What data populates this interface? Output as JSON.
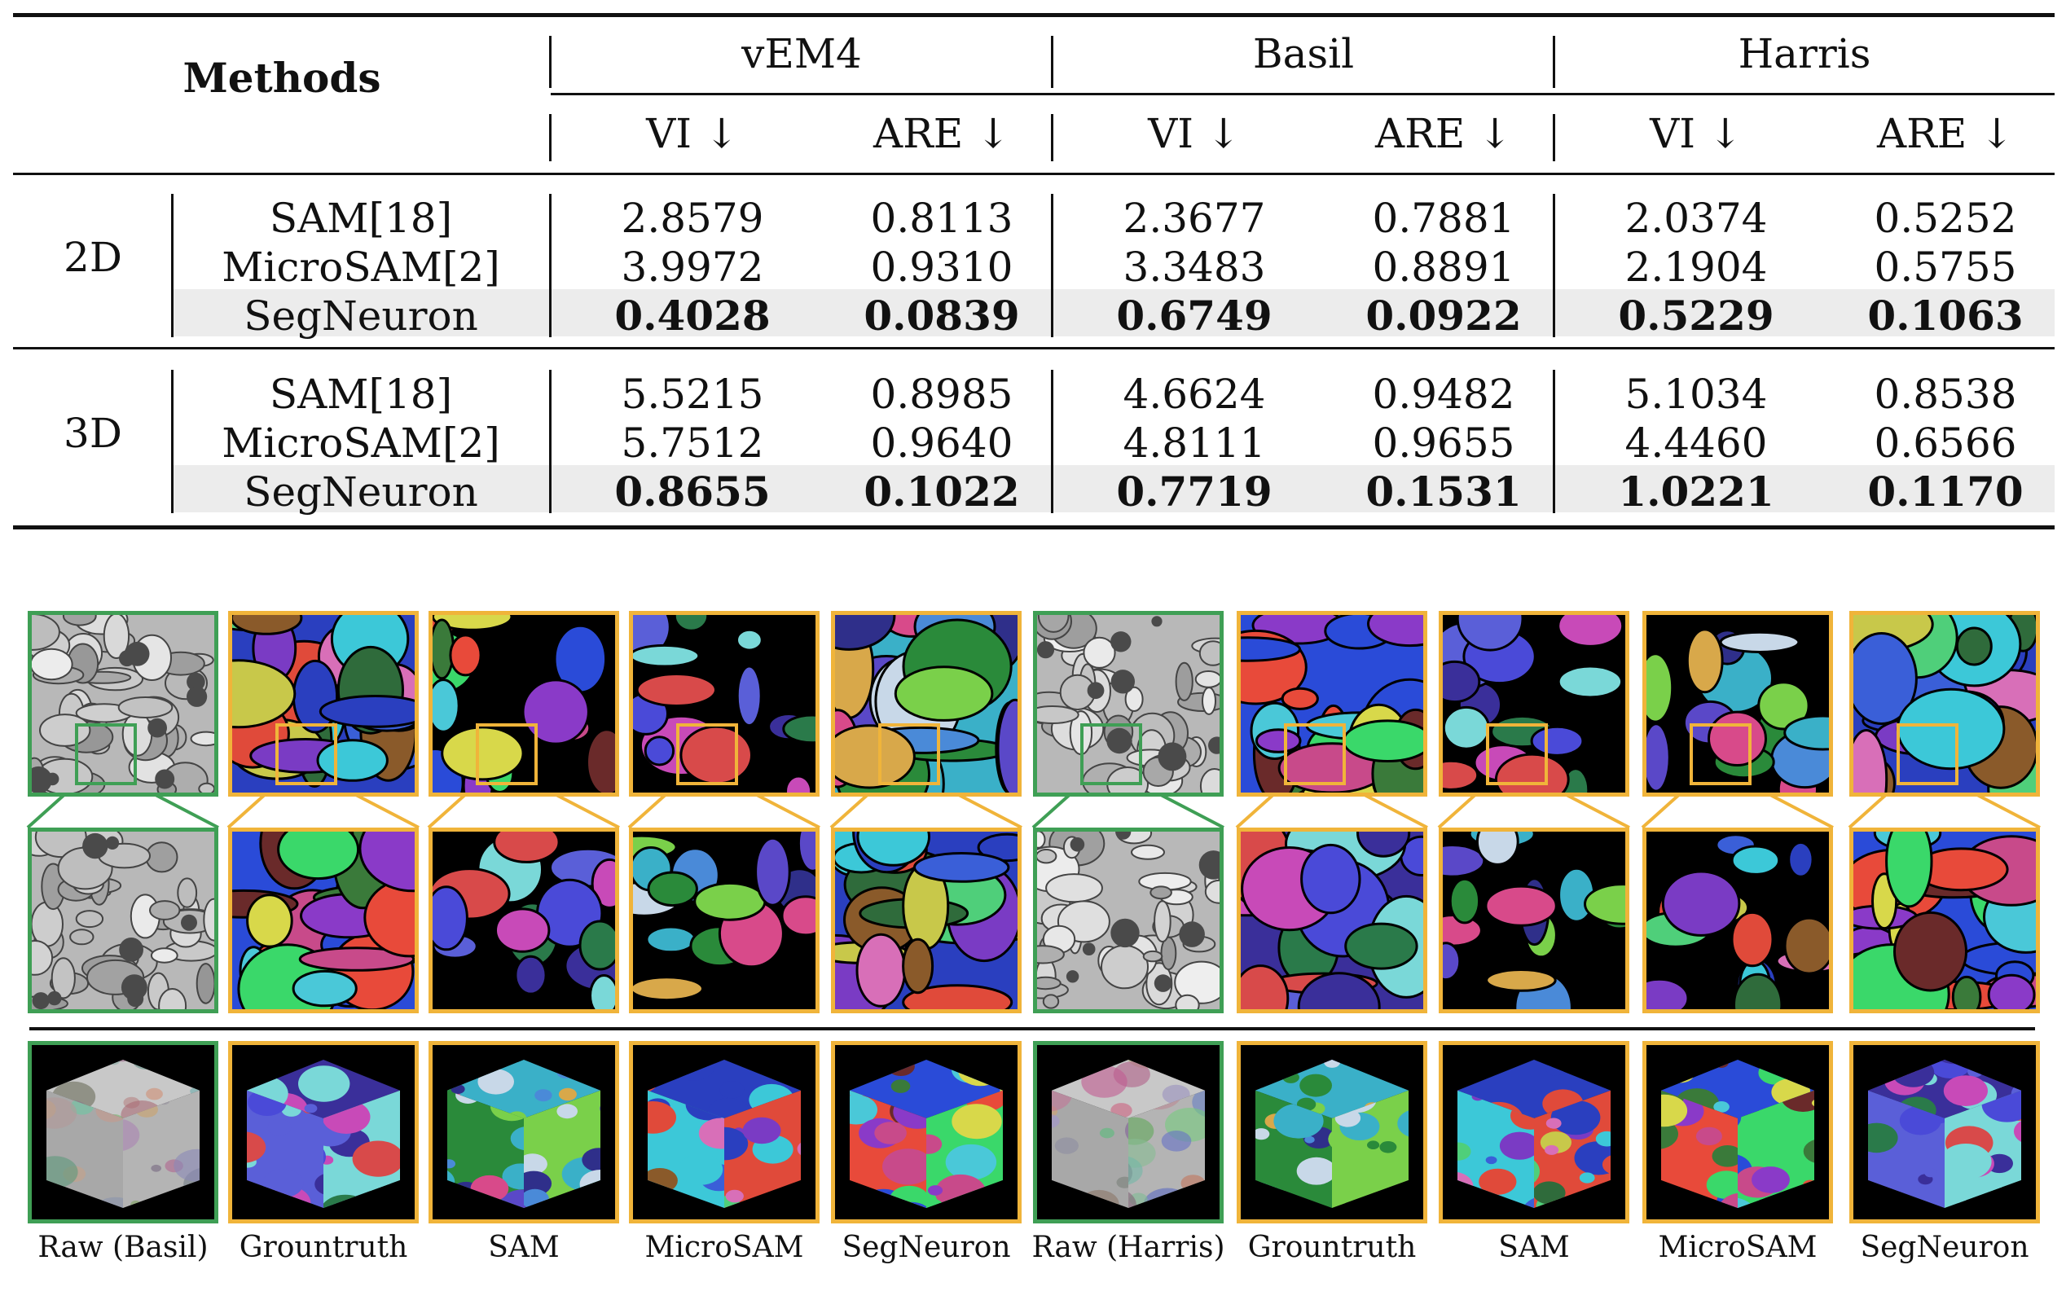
{
  "table": {
    "methods_header": "Methods",
    "datasets": [
      "vEM4",
      "Basil",
      "Harris"
    ],
    "metrics": [
      "VI ↓",
      "ARE ↓",
      "VI ↓",
      "ARE ↓",
      "VI ↓",
      "ARE ↓"
    ],
    "groups": [
      {
        "label": "2D",
        "rows": [
          {
            "method": "SAM[18]",
            "values": [
              "2.8579",
              "0.8113",
              "2.3677",
              "0.7881",
              "2.0374",
              "0.5252"
            ],
            "bold": false
          },
          {
            "method": "MicroSAM[2]",
            "values": [
              "3.9972",
              "0.9310",
              "3.3483",
              "0.8891",
              "2.1904",
              "0.5755"
            ],
            "bold": false
          },
          {
            "method": "SegNeuron",
            "values": [
              "0.4028",
              "0.0839",
              "0.6749",
              "0.0922",
              "0.5229",
              "0.1063"
            ],
            "bold": true
          }
        ]
      },
      {
        "label": "3D",
        "rows": [
          {
            "method": "SAM[18]",
            "values": [
              "5.5215",
              "0.8985",
              "4.6624",
              "0.9482",
              "5.1034",
              "0.8538"
            ],
            "bold": false
          },
          {
            "method": "MicroSAM[2]",
            "values": [
              "5.7512",
              "0.9640",
              "4.8111",
              "0.9655",
              "4.4460",
              "0.6566"
            ],
            "bold": false
          },
          {
            "method": "SegNeuron",
            "values": [
              "0.8655",
              "0.1022",
              "0.7719",
              "0.1531",
              "1.0221",
              "0.1170"
            ],
            "bold": true
          }
        ]
      }
    ]
  },
  "figure": {
    "captions": [
      "Raw (Basil)",
      "Grountruth",
      "SAM",
      "MicroSAM",
      "SegNeuron",
      "Raw (Harris)",
      "Grountruth",
      "SAM",
      "MicroSAM",
      "SegNeuron"
    ],
    "colors": {
      "raw_frame": "#3f9f55",
      "seg_frame": "#f0b43a"
    }
  }
}
